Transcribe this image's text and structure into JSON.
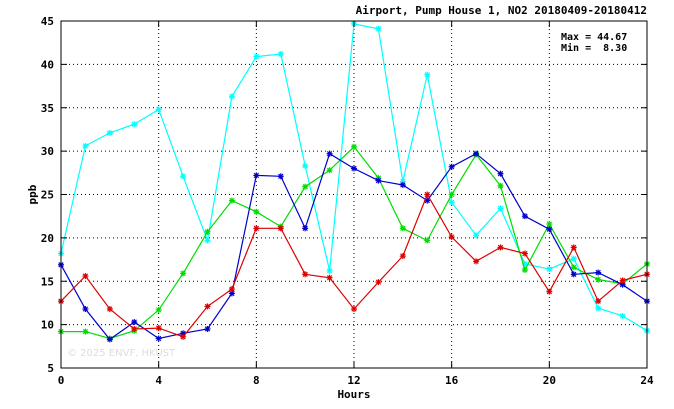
{
  "chart_data": {
    "type": "line",
    "title": "Airport, Pump House 1, NO2 20180409-20180412",
    "xlabel": "Hours",
    "ylabel": "ppb",
    "xlim": [
      0,
      24
    ],
    "ylim": [
      5,
      45
    ],
    "xticks": [
      0,
      4,
      8,
      12,
      16,
      20,
      24
    ],
    "yticks": [
      5,
      10,
      15,
      20,
      25,
      30,
      35,
      40,
      45
    ],
    "grid": true,
    "grid_style": "dotted",
    "marker": "asterisk",
    "stats": {
      "max_text": "Max = 44.67",
      "min_text": "Min =  8.30"
    },
    "watermark": "© 2025  ENVF, HKUST",
    "series": [
      {
        "color": "#00ffff",
        "x": [
          0,
          1,
          2,
          3,
          4,
          5,
          6,
          7,
          8,
          9,
          10,
          11,
          12,
          13,
          14,
          15,
          16,
          17,
          18,
          19,
          20,
          21,
          22,
          23,
          24
        ],
        "values": [
          18.2,
          30.6,
          32.1,
          33.1,
          34.8,
          27.1,
          19.7,
          36.3,
          40.9,
          41.2,
          28.3,
          16.2,
          44.67,
          44.1,
          26.5,
          38.8,
          24.1,
          20.3,
          23.4,
          17.0,
          16.4,
          17.6,
          11.9,
          11.0,
          9.3
        ]
      },
      {
        "color": "#00dd00",
        "x": [
          0,
          1,
          2,
          3,
          4,
          5,
          6,
          7,
          8,
          9,
          10,
          11,
          12,
          13,
          14,
          15,
          16,
          17,
          18,
          19,
          20,
          21,
          22,
          23,
          24
        ],
        "values": [
          9.2,
          9.2,
          8.4,
          9.3,
          11.7,
          15.9,
          20.7,
          24.3,
          23.0,
          21.3,
          25.9,
          27.8,
          30.5,
          26.9,
          21.1,
          19.7,
          25.0,
          29.6,
          26.0,
          16.3,
          21.6,
          16.6,
          15.2,
          14.7,
          17.0
        ]
      },
      {
        "color": "#0000cc",
        "x": [
          0,
          1,
          2,
          3,
          4,
          5,
          6,
          7,
          8,
          9,
          10,
          11,
          12,
          13,
          14,
          15,
          16,
          17,
          18,
          19,
          20,
          21,
          22,
          23,
          24
        ],
        "values": [
          16.9,
          11.8,
          8.3,
          10.3,
          8.4,
          9.0,
          9.5,
          13.6,
          27.2,
          27.1,
          21.1,
          29.7,
          28.0,
          26.6,
          26.1,
          24.3,
          28.2,
          29.7,
          27.4,
          22.5,
          21.0,
          15.8,
          16.0,
          14.6,
          12.7
        ]
      },
      {
        "color": "#dd0000",
        "x": [
          0,
          1,
          2,
          3,
          4,
          5,
          6,
          7,
          8,
          9,
          10,
          11,
          12,
          13,
          14,
          15,
          16,
          17,
          18,
          19,
          20,
          21,
          22,
          23,
          24
        ],
        "values": [
          12.7,
          15.6,
          11.8,
          9.5,
          9.6,
          8.6,
          12.1,
          14.1,
          21.1,
          21.1,
          15.8,
          15.4,
          11.8,
          14.9,
          17.9,
          25.0,
          20.1,
          17.3,
          18.9,
          18.2,
          13.8,
          18.9,
          12.7,
          15.1,
          15.8
        ]
      }
    ]
  }
}
